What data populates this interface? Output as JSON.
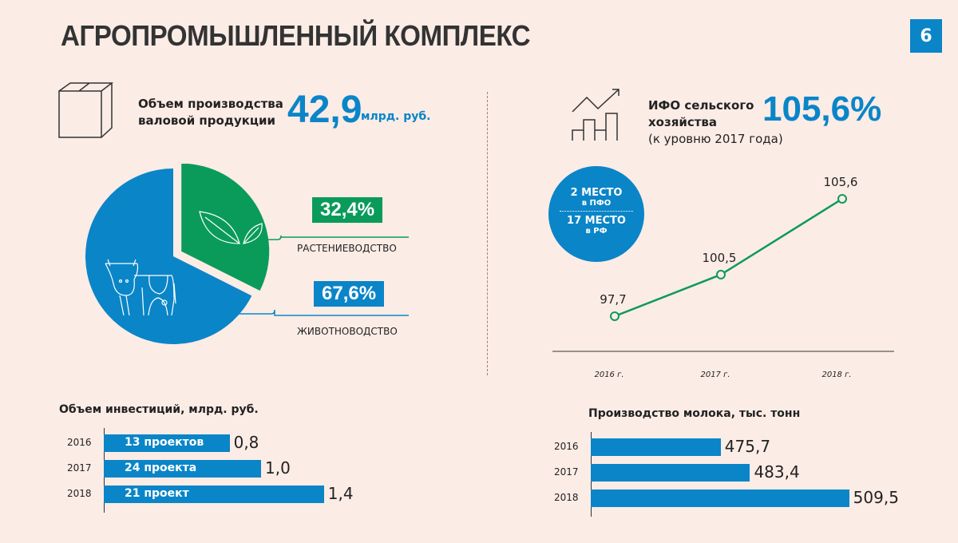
{
  "header": {
    "title": "АГРОПРОМЫШЛЕННЫЙ КОМПЛЕКС",
    "page_number": "6"
  },
  "production": {
    "label_line1": "Объем производства",
    "label_line2": "валовой продукции",
    "value": "42,9",
    "unit": "млрд. руб.",
    "icon": "box-icon"
  },
  "ifo": {
    "label_line1": "ИФО сельского",
    "label_line2": "хозяйства",
    "label_line3": "(к уровню 2017 года)",
    "value": "105,6%",
    "icon": "growth-chart-icon"
  },
  "ranking": {
    "rank1": "2 МЕСТО",
    "rank1_sub": "в ПФО",
    "rank2": "17 МЕСТО",
    "rank2_sub": "в РФ"
  },
  "colors": {
    "blue": "#0a85c8",
    "green": "#0a9b5a",
    "background": "#fcece6"
  },
  "chart_data": [
    {
      "type": "pie",
      "title": "Объем производства валовой продукции",
      "slices": [
        {
          "label": "РАСТЕНИЕВОДСТВО",
          "value": 32.4,
          "display": "32,4%",
          "color": "#0a9b5a",
          "icon": "leaves-icon"
        },
        {
          "label": "ЖИВОТНОВОДСТВО",
          "value": 67.6,
          "display": "67,6%",
          "color": "#0a85c8",
          "icon": "cow-icon"
        }
      ]
    },
    {
      "type": "line",
      "title": "ИФО сельского хозяйства",
      "categories": [
        "2016 г.",
        "2017 г.",
        "2018 г."
      ],
      "values": [
        97.7,
        100.5,
        105.6
      ],
      "labels": [
        "97,7",
        "100,5",
        "105,6"
      ],
      "color": "#0a9b5a"
    },
    {
      "type": "bar",
      "orientation": "horizontal",
      "title": "Объем инвестиций, млрд. руб.",
      "categories": [
        "2016",
        "2017",
        "2018"
      ],
      "values": [
        0.8,
        1.0,
        1.4
      ],
      "labels": [
        "0,8",
        "1,0",
        "1,4"
      ],
      "bar_text": [
        "13 проектов",
        "24 проекта",
        "21 проект"
      ]
    },
    {
      "type": "bar",
      "orientation": "horizontal",
      "title": "Производство молока, тыс. тонн",
      "categories": [
        "2016",
        "2017",
        "2018"
      ],
      "values": [
        475.7,
        483.4,
        509.5
      ],
      "labels": [
        "475,7",
        "483,4",
        "509,5"
      ]
    }
  ]
}
